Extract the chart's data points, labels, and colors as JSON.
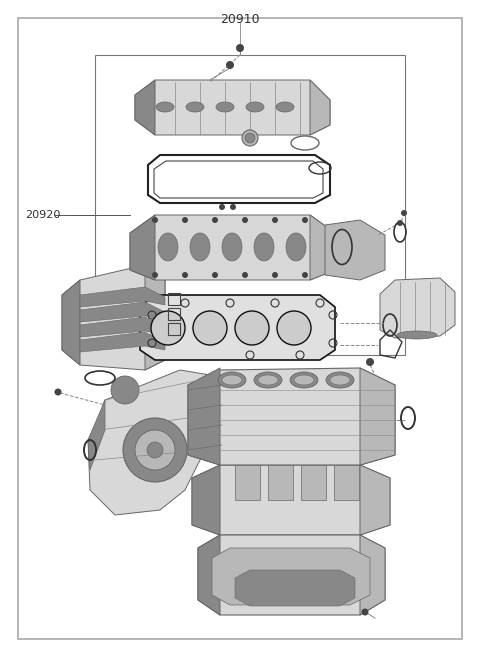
{
  "title": "20910",
  "label_20920": "20920",
  "bg_color": "#ffffff",
  "border_color": "#aaaaaa",
  "figsize": [
    4.8,
    6.57
  ],
  "dpi": 100,
  "title_fontsize": 9,
  "label_fontsize": 8,
  "gray_light": "#d8d8d8",
  "gray_mid": "#b8b8b8",
  "gray_dark": "#888888",
  "gray_darker": "#666666",
  "gray_darkest": "#444444",
  "black": "#111111",
  "line_color": "#555555"
}
